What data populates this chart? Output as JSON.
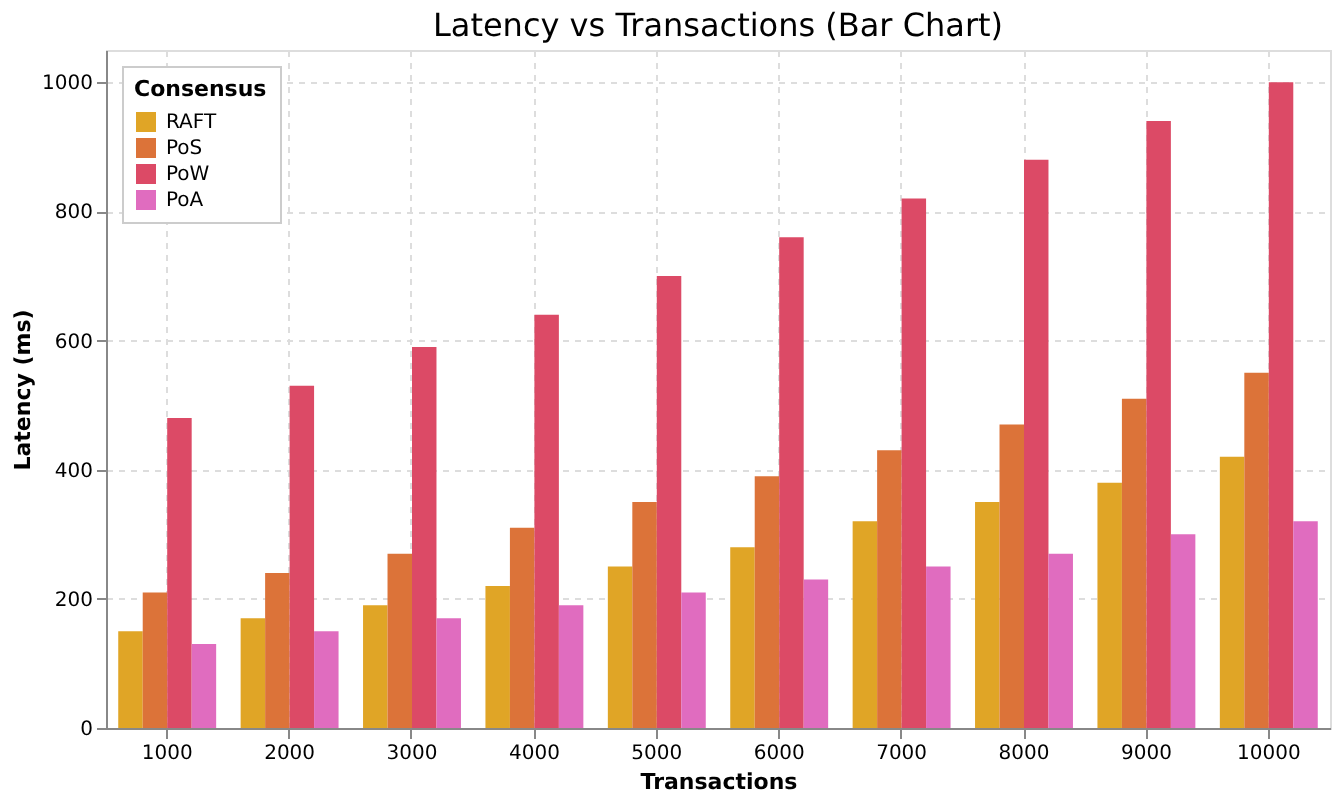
{
  "chart_data": {
    "type": "bar",
    "title": "Latency vs Transactions (Bar Chart)",
    "xlabel": "Transactions",
    "ylabel": "Latency (ms)",
    "legend_title": "Consensus",
    "legend": "top left",
    "grid": true,
    "categories": [
      "1000",
      "2000",
      "3000",
      "4000",
      "5000",
      "6000",
      "7000",
      "8000",
      "9000",
      "10000"
    ],
    "series": [
      {
        "name": "RAFT",
        "color": "#e0a526",
        "values": [
          150,
          170,
          190,
          220,
          250,
          280,
          320,
          350,
          380,
          420
        ]
      },
      {
        "name": "PoS",
        "color": "#dc7339",
        "values": [
          210,
          240,
          270,
          310,
          350,
          390,
          430,
          470,
          510,
          550
        ]
      },
      {
        "name": "PoW",
        "color": "#dc4a66",
        "values": [
          480,
          530,
          590,
          640,
          700,
          760,
          820,
          880,
          940,
          1000
        ]
      },
      {
        "name": "PoA",
        "color": "#e06cbf",
        "values": [
          130,
          150,
          170,
          190,
          210,
          230,
          250,
          270,
          300,
          320
        ]
      }
    ],
    "ylim": [
      0,
      1050
    ],
    "yticks": [
      0,
      200,
      400,
      600,
      800,
      1000
    ]
  }
}
